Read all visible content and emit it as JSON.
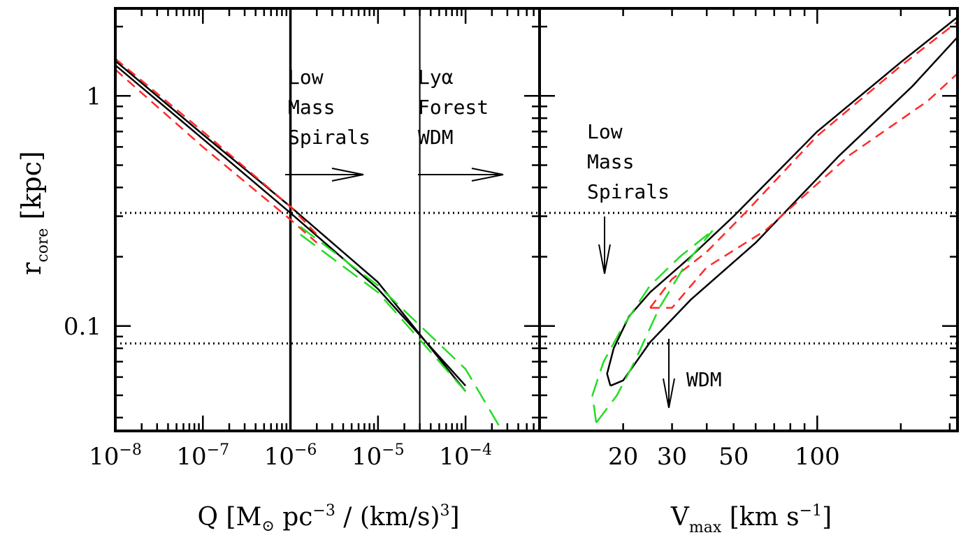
{
  "chart_data": [
    {
      "type": "line",
      "panel": "left",
      "xlabel": "Q [M⊙ pc⁻³ / (km/s)³]",
      "ylabel": "r_core [kpc]",
      "x_scale": "log",
      "y_scale": "log",
      "xlim": [
        1e-08,
        0.0007
      ],
      "ylim": [
        0.035,
        2.4
      ],
      "x_tick_labels": [
        {
          "value": 1e-08,
          "base": "10",
          "exp": "−8"
        },
        {
          "value": 1e-07,
          "base": "10",
          "exp": "−7"
        },
        {
          "value": 1e-06,
          "base": "10",
          "exp": "−6"
        },
        {
          "value": 1e-05,
          "base": "10",
          "exp": "−5"
        },
        {
          "value": 0.0001,
          "base": "10",
          "exp": "−4"
        }
      ],
      "y_tick_labels": [
        {
          "value": 1,
          "label": "1"
        },
        {
          "value": 0.1,
          "label": "0.1"
        }
      ],
      "vertical_lines": [
        1e-06,
        3e-05
      ],
      "horizontal_lines": [
        0.31,
        0.084
      ],
      "annotations": [
        {
          "lines": [
            "Low",
            "Mass",
            "Spirals"
          ],
          "arrow": "right"
        },
        {
          "lines": [
            "Lyα",
            "Forest",
            "WDM"
          ],
          "arrow": "right"
        }
      ],
      "series": [
        {
          "style": "black-solid",
          "x": [
            1e-08,
            1e-07,
            1e-06,
            1e-05,
            0.0001
          ],
          "y": [
            1.42,
            0.68,
            0.33,
            0.155,
            0.052
          ]
        },
        {
          "style": "black-solid",
          "x": [
            1e-08,
            1e-07,
            1e-06,
            1e-05,
            0.0001
          ],
          "y": [
            1.36,
            0.65,
            0.31,
            0.145,
            0.055
          ]
        },
        {
          "style": "red-dashed",
          "x": [
            1e-08,
            1e-07,
            1e-06,
            2e-06
          ],
          "y": [
            1.3,
            0.6,
            0.29,
            0.23
          ]
        },
        {
          "style": "red-dashed",
          "x": [
            1e-08,
            1e-07,
            1e-06,
            2e-06
          ],
          "y": [
            1.45,
            0.7,
            0.33,
            0.25
          ]
        },
        {
          "style": "green-dashed",
          "x": [
            1.3e-06,
            1e-05,
            0.0001,
            0.00025
          ],
          "y": [
            0.27,
            0.15,
            0.065,
            0.036
          ]
        },
        {
          "style": "green-dashed",
          "x": [
            1.3e-06,
            1e-05,
            0.0001
          ],
          "y": [
            0.25,
            0.14,
            0.052
          ]
        }
      ]
    },
    {
      "type": "line",
      "panel": "right",
      "xlabel": "V_max [km s⁻¹]",
      "x_scale": "log",
      "y_scale": "log",
      "xlim": [
        10,
        320
      ],
      "ylim": [
        0.035,
        2.4
      ],
      "x_tick_labels": [
        {
          "value": 20,
          "label": "20"
        },
        {
          "value": 30,
          "label": "30"
        },
        {
          "value": 50,
          "label": "50"
        },
        {
          "value": 100,
          "label": "100"
        }
      ],
      "horizontal_lines": [
        0.31,
        0.084
      ],
      "annotations": [
        {
          "lines": [
            "Low",
            "Mass",
            "Spirals"
          ],
          "arrow": "down"
        },
        {
          "lines": [
            "WDM"
          ],
          "arrow": "down"
        }
      ],
      "series": [
        {
          "style": "black-solid",
          "x": [
            18,
            17.5,
            18.5,
            21,
            25,
            35,
            50,
            100,
            200,
            320
          ],
          "y": [
            0.055,
            0.062,
            0.08,
            0.11,
            0.14,
            0.2,
            0.3,
            0.7,
            1.4,
            2.2
          ]
        },
        {
          "style": "black-solid",
          "x": [
            18,
            20,
            25,
            35,
            60,
            120,
            220,
            320
          ],
          "y": [
            0.055,
            0.058,
            0.085,
            0.13,
            0.23,
            0.55,
            1.1,
            1.8
          ]
        },
        {
          "style": "red-dashed",
          "x": [
            25,
            30,
            40,
            55,
            100,
            200,
            320
          ],
          "y": [
            0.12,
            0.16,
            0.21,
            0.31,
            0.67,
            1.35,
            2.1
          ]
        },
        {
          "style": "red-dashed",
          "x": [
            25,
            30,
            40,
            65,
            130,
            250,
            320
          ],
          "y": [
            0.12,
            0.12,
            0.18,
            0.26,
            0.55,
            0.95,
            1.25
          ]
        },
        {
          "style": "green-dashed",
          "x": [
            16,
            15.5,
            17,
            20,
            25,
            32,
            42
          ],
          "y": [
            0.038,
            0.05,
            0.07,
            0.1,
            0.15,
            0.2,
            0.26
          ]
        },
        {
          "style": "green-dashed",
          "x": [
            16,
            19,
            22,
            27,
            34,
            42
          ],
          "y": [
            0.038,
            0.05,
            0.07,
            0.12,
            0.19,
            0.26
          ]
        }
      ]
    }
  ],
  "styles": {
    "black-solid": {
      "color": "#000000",
      "dash": "",
      "width": 2.5
    },
    "red-dashed": {
      "color": "#ff2a2a",
      "dash": "14 9",
      "width": 2.5
    },
    "green-dashed": {
      "color": "#22dd22",
      "dash": "26 12",
      "width": 2.5
    }
  }
}
